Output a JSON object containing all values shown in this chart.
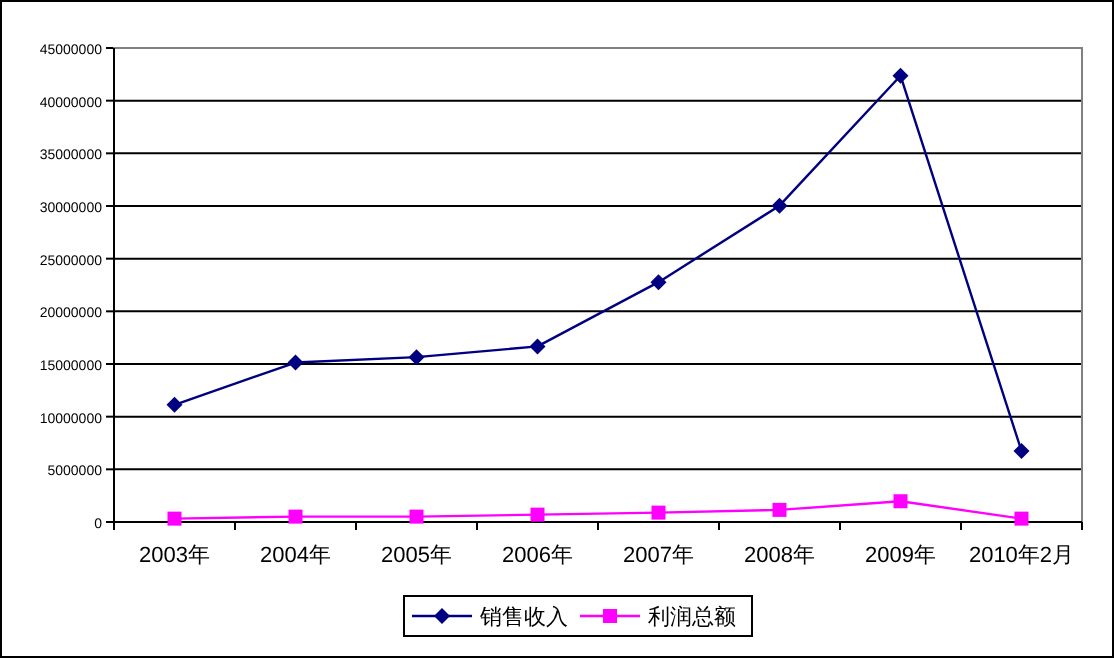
{
  "chart_data": {
    "type": "line",
    "categories": [
      "2003年",
      "2004年",
      "2005年",
      "2006年",
      "2007年",
      "2008年",
      "2009年",
      "2010年2月"
    ],
    "series": [
      {
        "name": "销售收入",
        "color": "#000080",
        "marker": "diamond",
        "values": [
          11130000,
          15140000,
          15650000,
          16670000,
          22770000,
          30030000,
          42370000,
          6740000
        ]
      },
      {
        "name": "利润总额",
        "color": "#ff00ff",
        "marker": "square",
        "values": [
          320000,
          510000,
          510000,
          700000,
          890000,
          1150000,
          1970000,
          320000
        ]
      }
    ],
    "ylim": [
      0,
      45000000
    ],
    "yticks": [
      0,
      5000000,
      10000000,
      15000000,
      20000000,
      25000000,
      30000000,
      35000000,
      40000000,
      45000000
    ],
    "grid": "y",
    "legend": "bottom",
    "line_style": "solid"
  }
}
